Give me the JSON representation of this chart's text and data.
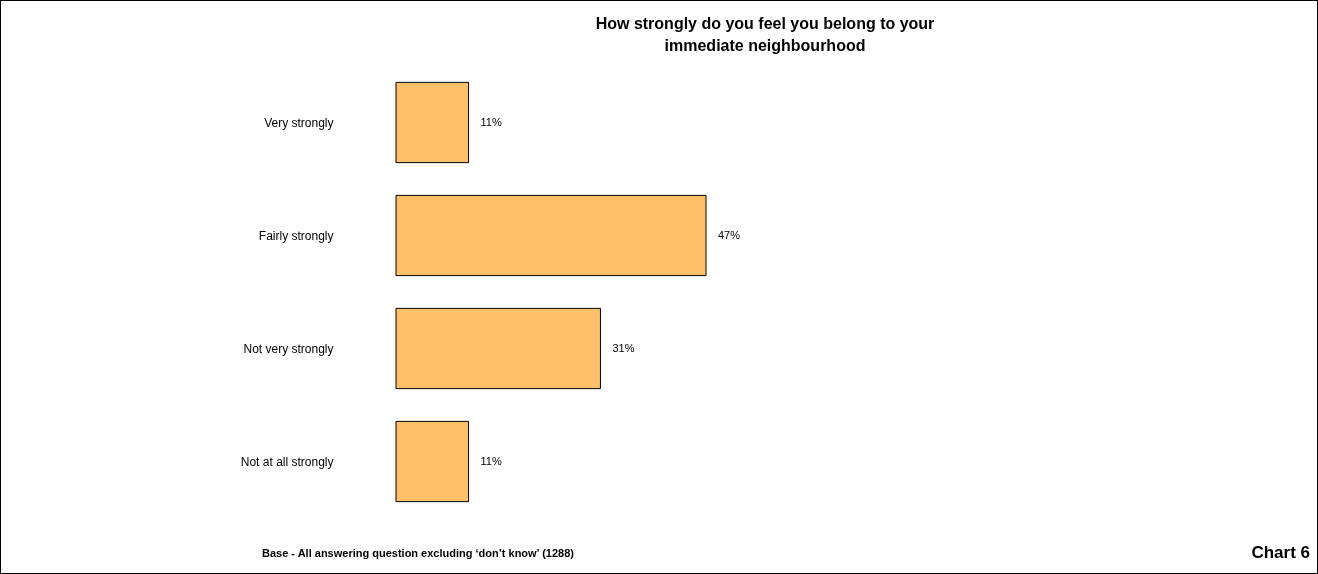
{
  "chart_data": {
    "type": "bar",
    "orientation": "horizontal",
    "title": "How strongly do you feel you belong to your immediate neighbourhood",
    "categories": [
      "Very strongly",
      "Fairly strongly",
      "Not very strongly",
      "Not at all strongly"
    ],
    "values": [
      11,
      47,
      31,
      11
    ],
    "value_labels": [
      "11%",
      "47%",
      "31%",
      "11%"
    ],
    "color": "#ffc06c",
    "tick_labels": "y",
    "annotations": [
      "Base - All answering question excluding ‘don’t know’ (1288)",
      "Chart 6"
    ]
  }
}
